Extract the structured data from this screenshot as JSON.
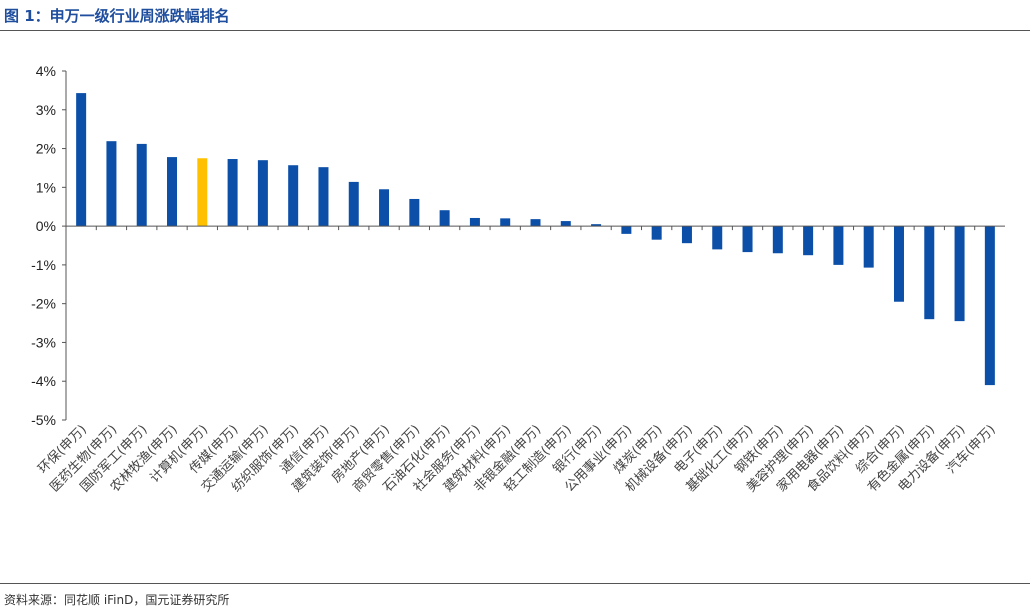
{
  "title": "图 1：申万一级行业周涨跌幅排名",
  "source": "资料来源：同花顺 iFinD，国元证券研究所",
  "chart_data": {
    "type": "bar",
    "title": "申万一级行业周涨跌幅排名",
    "xlabel": "",
    "ylabel": "",
    "ylim": [
      -5,
      4
    ],
    "yticks": [
      4,
      3,
      2,
      1,
      0,
      -1,
      -2,
      -3,
      -4,
      -5
    ],
    "ytick_labels": [
      "4%",
      "3%",
      "2%",
      "1%",
      "0%",
      "-1%",
      "-2%",
      "-3%",
      "-4%",
      "-5%"
    ],
    "categories": [
      "环保(申万)",
      "医药生物(申万)",
      "国防军工(申万)",
      "农林牧渔(申万)",
      "计算机(申万)",
      "传媒(申万)",
      "交通运输(申万)",
      "纺织服饰(申万)",
      "通信(申万)",
      "建筑装饰(申万)",
      "房地产(申万)",
      "商贸零售(申万)",
      "石油石化(申万)",
      "社会服务(申万)",
      "建筑材料(申万)",
      "非银金融(申万)",
      "轻工制造(申万)",
      "银行(申万)",
      "公用事业(申万)",
      "煤炭(申万)",
      "机械设备(申万)",
      "电子(申万)",
      "基础化工(申万)",
      "钢铁(申万)",
      "美容护理(申万)",
      "家用电器(申万)",
      "食品饮料(申万)",
      "综合(申万)",
      "有色金属(申万)",
      "电力设备(申万)",
      "汽车(申万)"
    ],
    "values": [
      3.43,
      2.19,
      2.12,
      1.78,
      1.75,
      1.73,
      1.7,
      1.57,
      1.52,
      1.14,
      0.95,
      0.7,
      0.41,
      0.21,
      0.2,
      0.18,
      0.13,
      0.05,
      -0.2,
      -0.35,
      -0.44,
      -0.6,
      -0.67,
      -0.7,
      -0.75,
      -1.0,
      -1.07,
      -1.95,
      -2.4,
      -2.45,
      -4.1
    ],
    "highlight_index": 4,
    "colors": {
      "bar": "#0b4fa8",
      "highlight": "#ffc000",
      "axis": "#555555"
    }
  }
}
